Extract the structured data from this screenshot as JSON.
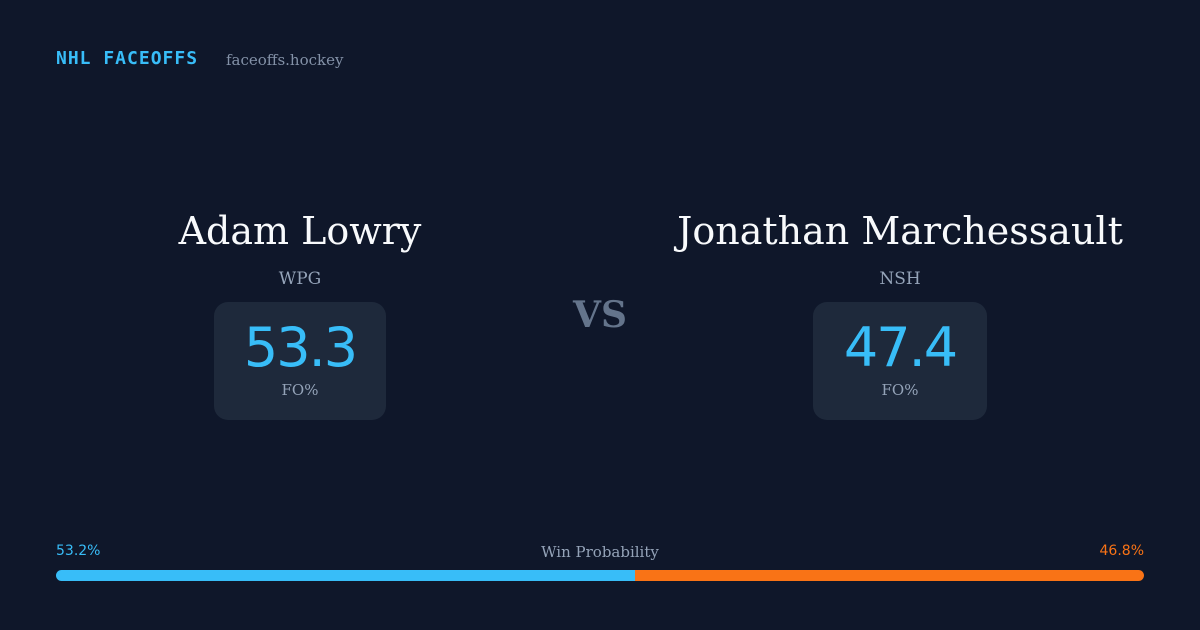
{
  "header": {
    "brand": "NHL FACEOFFS",
    "site": "faceoffs.hockey"
  },
  "matchup": {
    "players": [
      {
        "name": "Adam Lowry",
        "team": "WPG",
        "faceoff_pct": 53.3,
        "stat_label": "FO%"
      },
      {
        "name": "Jonathan Marchessault",
        "team": "NSH",
        "faceoff_pct": 47.4,
        "stat_label": "FO%"
      }
    ],
    "separator": "VS"
  },
  "win_probability": {
    "title": "Win Probability",
    "values": [
      53.2,
      46.8
    ],
    "value_labels": [
      "53.2%",
      "46.8%"
    ],
    "colors": [
      "#38bdf8",
      "#f97316"
    ]
  }
}
